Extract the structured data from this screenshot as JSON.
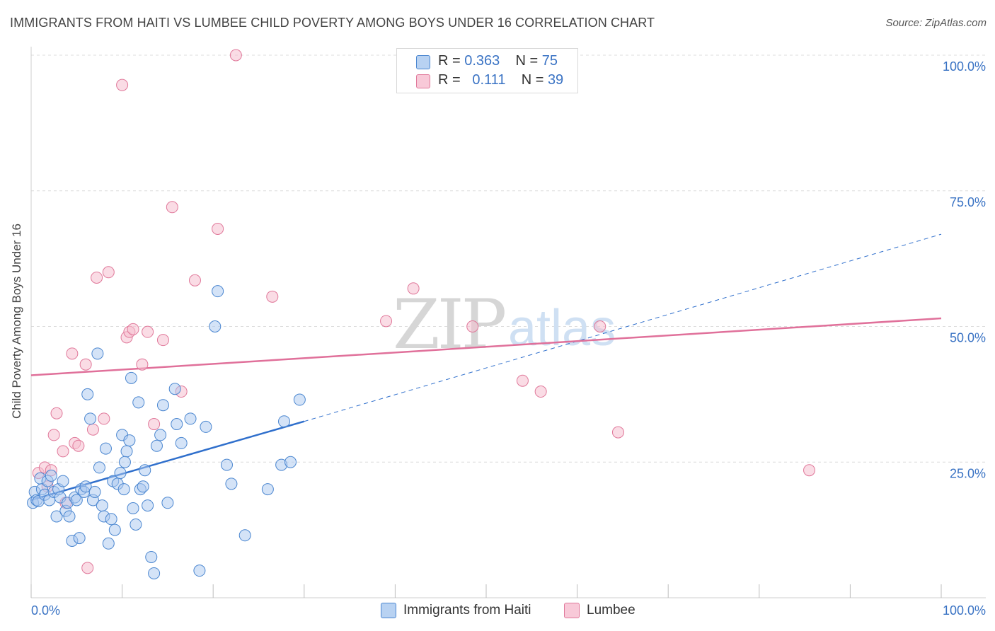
{
  "title": "IMMIGRANTS FROM HAITI VS LUMBEE CHILD POVERTY AMONG BOYS UNDER 16 CORRELATION CHART",
  "source": "Source: ZipAtlas.com",
  "watermark": {
    "zip": "ZIP",
    "atlas": "atlas"
  },
  "legend": {
    "r_label": "R =",
    "n_label": "N =",
    "haiti": {
      "r": "0.363",
      "n": "75"
    },
    "lumbee": {
      "r": "0.111",
      "n": "39"
    }
  },
  "colors": {
    "haiti_fill": "#a9c8f0",
    "haiti_stroke": "#4a86d0",
    "haiti_line": "#2f6fcc",
    "lumbee_fill": "#f6bfd0",
    "lumbee_stroke": "#e0789a",
    "lumbee_line": "#e0709a",
    "axis_text": "#3a73c4",
    "grid": "#dcdcdc"
  },
  "chart_data": {
    "type": "scatter",
    "title": "IMMIGRANTS FROM HAITI VS LUMBEE CHILD POVERTY AMONG BOYS UNDER 16 CORRELATION CHART",
    "xlabel": "",
    "ylabel": "Child Poverty Among Boys Under 16",
    "xlim": [
      0,
      100
    ],
    "ylim": [
      0,
      100
    ],
    "x_tick_labels": [
      "0.0%",
      "100.0%"
    ],
    "y_tick_labels": [
      "25.0%",
      "50.0%",
      "75.0%",
      "100.0%"
    ],
    "y_ticks": [
      25,
      50,
      75,
      100
    ],
    "legend_position": "top-center",
    "series": [
      {
        "name": "Immigrants from Haiti",
        "r": 0.363,
        "n": 75,
        "trend": {
          "x0": 0,
          "y0": 18.0,
          "x1": 30,
          "y1": 32.5,
          "dashed_to_x": 100,
          "dashed_to_y": 67
        },
        "points": [
          [
            0.2,
            17.5
          ],
          [
            0.4,
            19.5
          ],
          [
            0.6,
            18.0
          ],
          [
            0.8,
            17.8
          ],
          [
            1.0,
            22.0
          ],
          [
            1.2,
            20.0
          ],
          [
            1.5,
            19.0
          ],
          [
            1.8,
            21.5
          ],
          [
            2.0,
            18.0
          ],
          [
            2.2,
            22.5
          ],
          [
            2.5,
            19.5
          ],
          [
            2.8,
            15.0
          ],
          [
            3.0,
            20.0
          ],
          [
            3.2,
            18.5
          ],
          [
            3.5,
            21.5
          ],
          [
            3.8,
            16.0
          ],
          [
            4.0,
            17.5
          ],
          [
            4.2,
            15.0
          ],
          [
            4.5,
            10.5
          ],
          [
            4.8,
            18.5
          ],
          [
            5.0,
            18.0
          ],
          [
            5.3,
            11.0
          ],
          [
            5.5,
            20.0
          ],
          [
            5.8,
            19.5
          ],
          [
            6.0,
            20.5
          ],
          [
            6.2,
            37.5
          ],
          [
            6.5,
            33.0
          ],
          [
            6.8,
            18.0
          ],
          [
            7.0,
            19.5
          ],
          [
            7.3,
            45.0
          ],
          [
            7.5,
            24.0
          ],
          [
            7.8,
            17.0
          ],
          [
            8.0,
            15.0
          ],
          [
            8.2,
            27.5
          ],
          [
            8.5,
            10.0
          ],
          [
            8.8,
            14.5
          ],
          [
            9.0,
            21.5
          ],
          [
            9.2,
            12.5
          ],
          [
            9.5,
            21.0
          ],
          [
            9.8,
            23.0
          ],
          [
            10.0,
            30.0
          ],
          [
            10.2,
            20.0
          ],
          [
            10.5,
            27.0
          ],
          [
            10.8,
            29.0
          ],
          [
            11.0,
            40.5
          ],
          [
            11.2,
            16.5
          ],
          [
            11.5,
            13.5
          ],
          [
            11.8,
            36.0
          ],
          [
            12.0,
            20.0
          ],
          [
            12.3,
            20.5
          ],
          [
            12.5,
            23.5
          ],
          [
            12.8,
            17.0
          ],
          [
            13.2,
            7.5
          ],
          [
            13.5,
            4.5
          ],
          [
            13.8,
            28.0
          ],
          [
            14.2,
            30.0
          ],
          [
            14.5,
            35.5
          ],
          [
            15.0,
            17.5
          ],
          [
            15.8,
            38.5
          ],
          [
            16.0,
            32.0
          ],
          [
            16.5,
            28.5
          ],
          [
            17.5,
            33.0
          ],
          [
            18.5,
            5.0
          ],
          [
            19.2,
            31.5
          ],
          [
            20.2,
            50.0
          ],
          [
            20.5,
            56.5
          ],
          [
            21.5,
            24.5
          ],
          [
            22.0,
            21.0
          ],
          [
            23.5,
            11.5
          ],
          [
            27.5,
            24.5
          ],
          [
            27.8,
            32.5
          ],
          [
            28.5,
            25.0
          ],
          [
            29.5,
            36.5
          ],
          [
            10.3,
            25.0
          ],
          [
            26.0,
            20.0
          ]
        ]
      },
      {
        "name": "Lumbee",
        "r": 0.111,
        "n": 39,
        "trend": {
          "x0": 0,
          "y0": 41.0,
          "x1": 100,
          "y1": 51.5
        },
        "points": [
          [
            0.8,
            23.0
          ],
          [
            1.5,
            24.0
          ],
          [
            1.8,
            20.5
          ],
          [
            2.2,
            23.5
          ],
          [
            2.5,
            30.0
          ],
          [
            2.8,
            34.0
          ],
          [
            3.5,
            27.0
          ],
          [
            3.8,
            17.5
          ],
          [
            4.5,
            45.0
          ],
          [
            4.8,
            28.5
          ],
          [
            5.2,
            28.0
          ],
          [
            6.0,
            43.0
          ],
          [
            6.2,
            5.5
          ],
          [
            6.8,
            31.0
          ],
          [
            7.2,
            59.0
          ],
          [
            8.0,
            33.0
          ],
          [
            8.5,
            60.0
          ],
          [
            10.0,
            94.5
          ],
          [
            10.5,
            48.0
          ],
          [
            10.8,
            49.0
          ],
          [
            11.2,
            49.5
          ],
          [
            12.2,
            43.0
          ],
          [
            12.8,
            49.0
          ],
          [
            13.5,
            32.0
          ],
          [
            14.5,
            47.5
          ],
          [
            15.5,
            72.0
          ],
          [
            16.5,
            38.0
          ],
          [
            18.0,
            58.5
          ],
          [
            20.5,
            68.0
          ],
          [
            22.5,
            100.0
          ],
          [
            26.5,
            55.5
          ],
          [
            39.0,
            51.0
          ],
          [
            42.0,
            57.0
          ],
          [
            48.5,
            50.0
          ],
          [
            54.0,
            40.0
          ],
          [
            56.0,
            38.0
          ],
          [
            62.5,
            50.0
          ],
          [
            64.5,
            30.5
          ],
          [
            85.5,
            23.5
          ]
        ]
      }
    ]
  },
  "bottom_legend": [
    "Immigrants from Haiti",
    "Lumbee"
  ]
}
